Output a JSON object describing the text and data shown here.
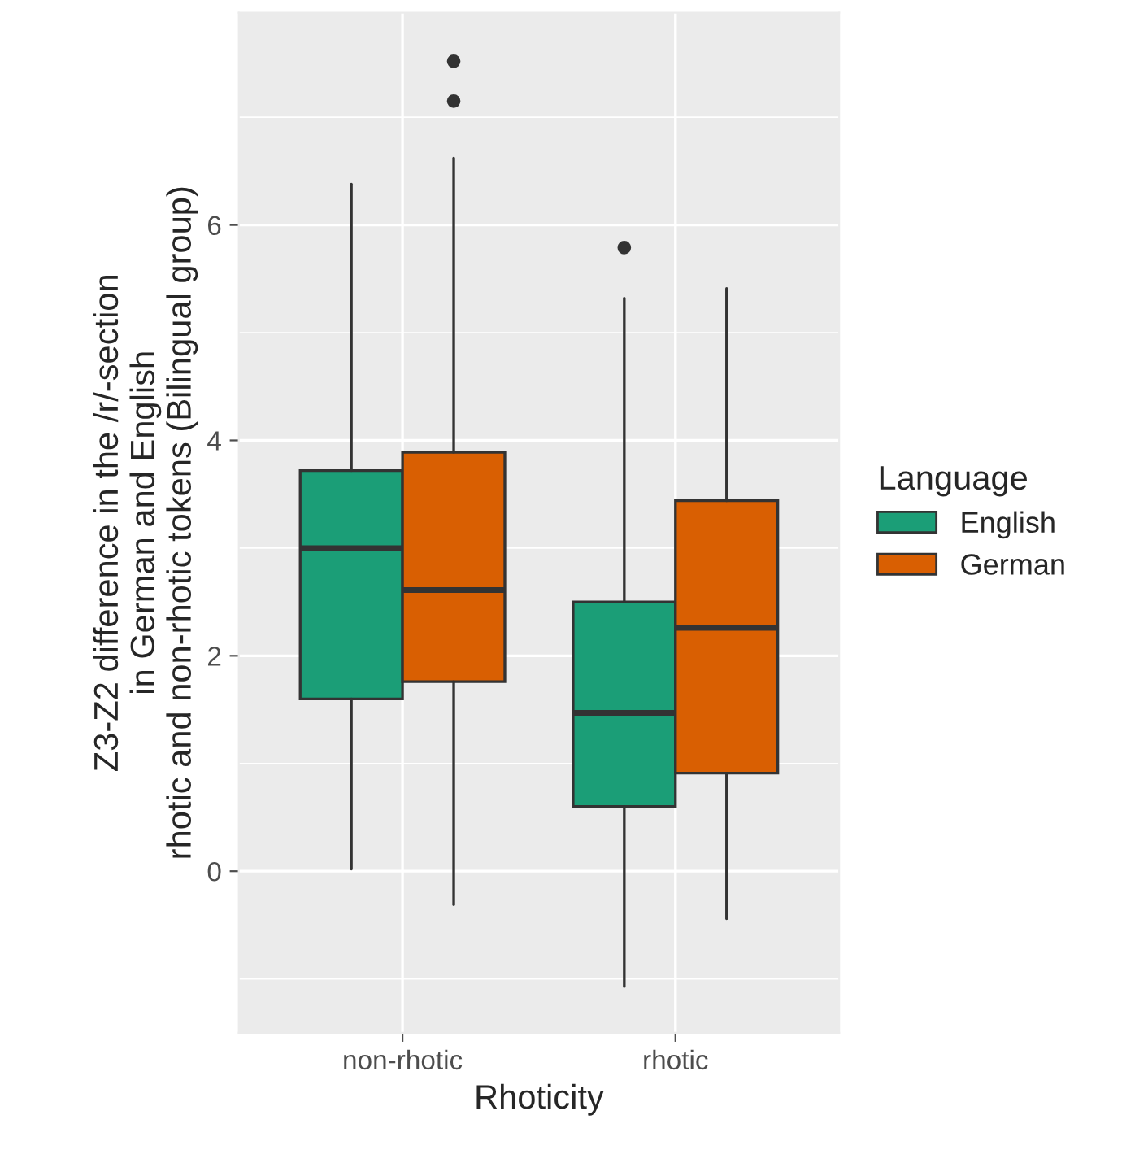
{
  "chart_data": {
    "type": "box",
    "xlabel": "Rhoticity",
    "ylabel": "Z3-Z2 difference in the /r/-section\nin German and English\nrhotic and non-rhotic tokens (Bilingual group)",
    "legend_title": "Language",
    "categories": [
      "non-rhotic",
      "rhotic"
    ],
    "series": [
      {
        "name": "English",
        "color": "#1b9e77",
        "boxes": [
          {
            "low": 0.02,
            "q1": 1.6,
            "median": 3.0,
            "q3": 3.72,
            "high": 6.38
          },
          {
            "low": -1.07,
            "q1": 0.6,
            "median": 1.47,
            "q3": 2.5,
            "high": 5.32,
            "outliers": [
              5.79
            ]
          }
        ]
      },
      {
        "name": "German",
        "color": "#d95f02",
        "boxes": [
          {
            "low": -0.31,
            "q1": 1.76,
            "median": 2.61,
            "q3": 3.89,
            "high": 6.62,
            "outliers": [
              7.15,
              7.52
            ]
          },
          {
            "low": -0.44,
            "q1": 0.91,
            "median": 2.26,
            "q3": 3.44,
            "high": 5.41
          }
        ]
      }
    ],
    "ylim": [
      -1.5,
      7.97
    ],
    "yticks": [
      0,
      2,
      4,
      6
    ],
    "grid": true,
    "legend": "right"
  }
}
